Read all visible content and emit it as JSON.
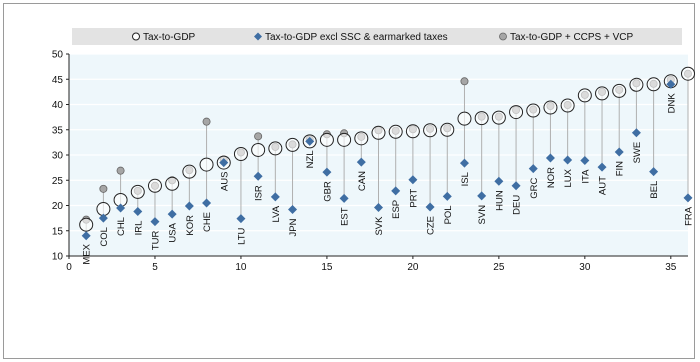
{
  "chart_data": {
    "type": "scatter",
    "legend": [
      {
        "label": "Tax-to-GDP",
        "marker": "open-circle"
      },
      {
        "label": "Tax-to-GDP excl SSC & earmarked taxes",
        "marker": "diamond"
      },
      {
        "label": "Tax-to-GDP + CCPS + VCP",
        "marker": "grey-circle"
      }
    ],
    "legend_placement": "top",
    "xlim": [
      0,
      36
    ],
    "ylim": [
      10,
      50
    ],
    "x_ticks": [
      0,
      5,
      10,
      15,
      20,
      25,
      30,
      35
    ],
    "y_ticks": [
      10,
      15,
      20,
      25,
      30,
      35,
      40,
      45,
      50
    ],
    "grid": true,
    "colors": {
      "diamond": "#3f6ea3",
      "grey_circle": "#a6a6a6",
      "open_circle_stroke": "#222222",
      "plot_bg": "#eef7fb",
      "stem": "#b0b0b0",
      "legend_bar": "#e3e3e3"
    },
    "points": [
      {
        "x": 1,
        "label": "MEX",
        "tax_to_gdp": 16.2,
        "excl_ssc": 14.0,
        "plus_ccps_vcp": 17.2
      },
      {
        "x": 2,
        "label": "COL",
        "tax_to_gdp": 19.3,
        "excl_ssc": 17.5,
        "plus_ccps_vcp": 23.3
      },
      {
        "x": 3,
        "label": "CHL",
        "tax_to_gdp": 21.1,
        "excl_ssc": 19.5,
        "plus_ccps_vcp": 26.9
      },
      {
        "x": 4,
        "label": "IRL",
        "tax_to_gdp": 22.7,
        "excl_ssc": 18.8,
        "plus_ccps_vcp": 22.9
      },
      {
        "x": 5,
        "label": "TUR",
        "tax_to_gdp": 23.9,
        "excl_ssc": 16.8,
        "plus_ccps_vcp": 23.9
      },
      {
        "x": 6,
        "label": "USA",
        "tax_to_gdp": 24.3,
        "excl_ssc": 18.3,
        "plus_ccps_vcp": 25.0
      },
      {
        "x": 7,
        "label": "KOR",
        "tax_to_gdp": 26.7,
        "excl_ssc": 19.9,
        "plus_ccps_vcp": 27.0
      },
      {
        "x": 8,
        "label": "CHE",
        "tax_to_gdp": 28.1,
        "excl_ssc": 20.5,
        "plus_ccps_vcp": 36.6
      },
      {
        "x": 9,
        "label": "AUS",
        "tax_to_gdp": 28.5,
        "excl_ssc": 28.5,
        "plus_ccps_vcp": 29.1
      },
      {
        "x": 10,
        "label": "LTU",
        "tax_to_gdp": 30.2,
        "excl_ssc": 17.4,
        "plus_ccps_vcp": 30.5
      },
      {
        "x": 11,
        "label": "ISR",
        "tax_to_gdp": 31.0,
        "excl_ssc": 25.8,
        "plus_ccps_vcp": 33.7
      },
      {
        "x": 12,
        "label": "LVA",
        "tax_to_gdp": 31.3,
        "excl_ssc": 21.7,
        "plus_ccps_vcp": 31.6
      },
      {
        "x": 13,
        "label": "JPN",
        "tax_to_gdp": 32.0,
        "excl_ssc": 19.2,
        "plus_ccps_vcp": 32.1
      },
      {
        "x": 14,
        "label": "NZL",
        "tax_to_gdp": 32.7,
        "excl_ssc": 32.7,
        "plus_ccps_vcp": 33.1
      },
      {
        "x": 15,
        "label": "GBR",
        "tax_to_gdp": 33.0,
        "excl_ssc": 26.6,
        "plus_ccps_vcp": 34.1
      },
      {
        "x": 16,
        "label": "EST",
        "tax_to_gdp": 33.0,
        "excl_ssc": 21.4,
        "plus_ccps_vcp": 34.3
      },
      {
        "x": 17,
        "label": "CAN",
        "tax_to_gdp": 33.3,
        "excl_ssc": 28.6,
        "plus_ccps_vcp": 33.6
      },
      {
        "x": 18,
        "label": "SVK",
        "tax_to_gdp": 34.4,
        "excl_ssc": 19.6,
        "plus_ccps_vcp": 34.9
      },
      {
        "x": 19,
        "label": "ESP",
        "tax_to_gdp": 34.6,
        "excl_ssc": 22.9,
        "plus_ccps_vcp": 34.8
      },
      {
        "x": 20,
        "label": "PRT",
        "tax_to_gdp": 34.7,
        "excl_ssc": 25.1,
        "plus_ccps_vcp": 35.1
      },
      {
        "x": 21,
        "label": "CZE",
        "tax_to_gdp": 34.9,
        "excl_ssc": 19.7,
        "plus_ccps_vcp": 35.2
      },
      {
        "x": 22,
        "label": "POL",
        "tax_to_gdp": 35.0,
        "excl_ssc": 21.8,
        "plus_ccps_vcp": 35.3
      },
      {
        "x": 23,
        "label": "ISL",
        "tax_to_gdp": 37.2,
        "excl_ssc": 28.4,
        "plus_ccps_vcp": 44.6
      },
      {
        "x": 24,
        "label": "SVN",
        "tax_to_gdp": 37.3,
        "excl_ssc": 21.9,
        "plus_ccps_vcp": 37.6
      },
      {
        "x": 25,
        "label": "HUN",
        "tax_to_gdp": 37.4,
        "excl_ssc": 24.8,
        "plus_ccps_vcp": 37.6
      },
      {
        "x": 26,
        "label": "DEU",
        "tax_to_gdp": 38.5,
        "excl_ssc": 23.9,
        "plus_ccps_vcp": 38.9
      },
      {
        "x": 27,
        "label": "GRC",
        "tax_to_gdp": 38.8,
        "excl_ssc": 27.3,
        "plus_ccps_vcp": 39.0
      },
      {
        "x": 28,
        "label": "NOR",
        "tax_to_gdp": 39.4,
        "excl_ssc": 29.4,
        "plus_ccps_vcp": 39.7
      },
      {
        "x": 29,
        "label": "LUX",
        "tax_to_gdp": 39.8,
        "excl_ssc": 29.0,
        "plus_ccps_vcp": 39.9
      },
      {
        "x": 30,
        "label": "ITA",
        "tax_to_gdp": 41.8,
        "excl_ssc": 28.9,
        "plus_ccps_vcp": 41.9
      },
      {
        "x": 31,
        "label": "AUT",
        "tax_to_gdp": 42.2,
        "excl_ssc": 27.6,
        "plus_ccps_vcp": 42.5
      },
      {
        "x": 32,
        "label": "FIN",
        "tax_to_gdp": 42.7,
        "excl_ssc": 30.6,
        "plus_ccps_vcp": 42.9
      },
      {
        "x": 33,
        "label": "SWE",
        "tax_to_gdp": 43.9,
        "excl_ssc": 34.4,
        "plus_ccps_vcp": 44.2
      },
      {
        "x": 34,
        "label": "BEL",
        "tax_to_gdp": 44.0,
        "excl_ssc": 26.7,
        "plus_ccps_vcp": 44.1
      },
      {
        "x": 35,
        "label": "DNK",
        "tax_to_gdp": 44.6,
        "excl_ssc": 44.0,
        "plus_ccps_vcp": 44.9
      },
      {
        "x": 36,
        "label": "FRA",
        "tax_to_gdp": 46.1,
        "excl_ssc": 21.5,
        "plus_ccps_vcp": 46.1
      }
    ]
  }
}
